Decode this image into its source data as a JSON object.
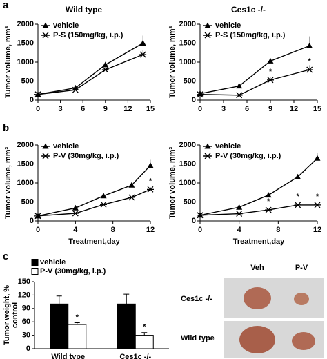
{
  "panels": [
    "a",
    "b",
    "c"
  ],
  "chart_data": [
    {
      "type": "line",
      "title": "Wild type",
      "ylabel": "Tumor volume, mm³",
      "x": [
        0,
        5,
        9,
        14
      ],
      "xlim": [
        0,
        15
      ],
      "xticks": [
        0,
        3,
        6,
        9,
        12,
        15
      ],
      "ylim": [
        0,
        2000
      ],
      "yticks": [
        0,
        500,
        1000,
        1500,
        2000
      ],
      "series": [
        {
          "name": "vehicle",
          "color": "#000000",
          "marker": "triangle",
          "values": [
            150,
            320,
            930,
            1500
          ],
          "errors": [
            null,
            null,
            60,
            200
          ]
        },
        {
          "name": "P-S (150mg/kg, i.p.)",
          "color": "#000000",
          "marker": "star",
          "values": [
            150,
            270,
            800,
            1200
          ],
          "errors": [
            null,
            null,
            50,
            120
          ]
        }
      ]
    },
    {
      "type": "line",
      "title": "Ces1c -/-",
      "ylabel": "Tumor volume, mm³",
      "x": [
        0,
        5,
        9,
        14
      ],
      "xlim": [
        0,
        15
      ],
      "xticks": [
        0,
        3,
        6,
        9,
        12,
        15
      ],
      "ylim": [
        0,
        2000
      ],
      "yticks": [
        0,
        500,
        1000,
        1500,
        2000
      ],
      "series": [
        {
          "name": "vehicle",
          "color": "#000000",
          "marker": "triangle",
          "values": [
            170,
            370,
            1030,
            1430
          ],
          "errors": [
            null,
            null,
            60,
            250
          ]
        },
        {
          "name": "P-S (150mg/kg, i.p.)",
          "color": "#000000",
          "marker": "star",
          "values": [
            150,
            130,
            530,
            800
          ],
          "errors": [
            null,
            null,
            80,
            120
          ]
        }
      ],
      "annotations": [
        {
          "x": 9,
          "text": "*"
        },
        {
          "x": 14,
          "text": "*"
        }
      ]
    },
    {
      "type": "line",
      "ylabel": "Tumor volume, mm³",
      "xlabel": "Treatment,day",
      "x": [
        0,
        4,
        7,
        10,
        12
      ],
      "xlim": [
        0,
        12
      ],
      "xticks": [
        0,
        4,
        8,
        12
      ],
      "ylim": [
        0,
        2000
      ],
      "yticks": [
        0,
        500,
        1000,
        1500,
        2000
      ],
      "series": [
        {
          "name": "vehicle",
          "color": "#000000",
          "marker": "triangle",
          "values": [
            130,
            340,
            660,
            940,
            1460
          ],
          "errors": [
            null,
            null,
            null,
            null,
            150
          ]
        },
        {
          "name": "P-V (30mg/kg, i.p.)",
          "color": "#000000",
          "marker": "star",
          "values": [
            130,
            200,
            430,
            620,
            830
          ],
          "errors": [
            null,
            null,
            null,
            null,
            60
          ]
        }
      ],
      "annotations": [
        {
          "x": 12,
          "text": "*"
        }
      ]
    },
    {
      "type": "line",
      "ylabel": "Tumor volume, mm³",
      "xlabel": "Treatment,day",
      "x": [
        0,
        4,
        7,
        10,
        12
      ],
      "xlim": [
        0,
        12
      ],
      "xticks": [
        0,
        4,
        8,
        12
      ],
      "ylim": [
        0,
        2000
      ],
      "yticks": [
        0,
        500,
        1000,
        1500,
        2000
      ],
      "series": [
        {
          "name": "vehicle",
          "color": "#000000",
          "marker": "triangle",
          "values": [
            150,
            360,
            680,
            1160,
            1650
          ],
          "errors": [
            null,
            null,
            null,
            null,
            150
          ]
        },
        {
          "name": "P-V (30mg/kg, i.p.)",
          "color": "#000000",
          "marker": "star",
          "values": [
            150,
            190,
            290,
            420,
            420
          ],
          "errors": [
            null,
            null,
            null,
            null,
            null
          ]
        }
      ],
      "annotations": [
        {
          "x": 7,
          "text": "*"
        },
        {
          "x": 10,
          "text": "*"
        },
        {
          "x": 12,
          "text": "*"
        }
      ]
    },
    {
      "type": "bar",
      "ylabel": [
        "Tumor weight, %",
        "control"
      ],
      "categories": [
        "Wild type",
        "Ces1c -/-"
      ],
      "ylim": [
        0,
        150
      ],
      "yticks": [
        0,
        30,
        60,
        90,
        120,
        150
      ],
      "series": [
        {
          "name": "vehicle",
          "color": "#000000",
          "values": [
            100,
            100
          ],
          "errors": [
            18,
            22
          ]
        },
        {
          "name": "P-V (30mg/kg, i.p.)",
          "color": "#ffffff",
          "values": [
            54,
            30
          ],
          "errors": [
            4,
            6
          ]
        }
      ],
      "annotations": [
        {
          "category": 0,
          "text": "*"
        },
        {
          "category": 1,
          "text": "*"
        }
      ]
    }
  ],
  "photo": {
    "columns": [
      "Veh",
      "P-V"
    ],
    "rows": [
      "Ces1c -/-",
      "Wild type"
    ]
  }
}
